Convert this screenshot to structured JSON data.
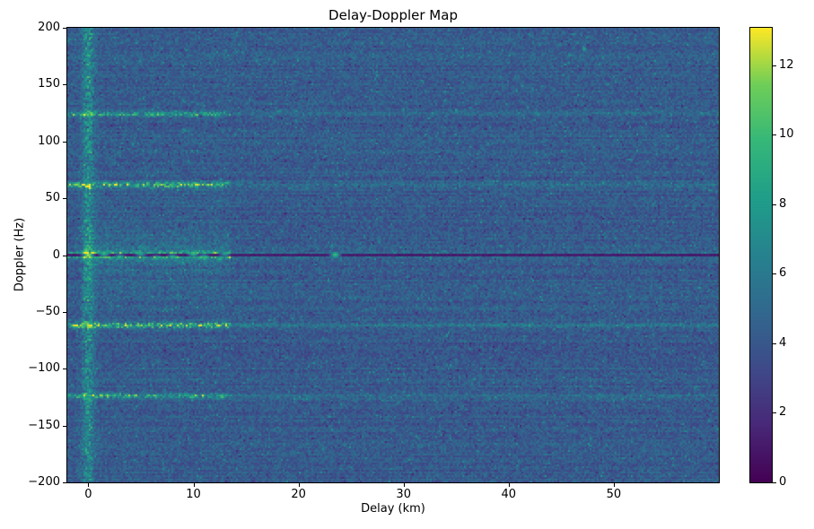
{
  "chart_data": {
    "type": "heatmap",
    "title": "Delay-Doppler Map",
    "xlabel": "Delay (km)",
    "ylabel": "Doppler (Hz)",
    "x_range_km": [
      -2,
      60
    ],
    "y_range_hz": [
      -200,
      200
    ],
    "x_ticks": [
      0,
      10,
      20,
      30,
      40,
      50
    ],
    "y_ticks": [
      -200,
      -150,
      -100,
      -50,
      0,
      50,
      100,
      150,
      200
    ],
    "colorbar": {
      "min": 0,
      "max": 13.08,
      "ticks": [
        0,
        2,
        4,
        6,
        8,
        10,
        12
      ],
      "colormap": "viridis",
      "stops": [
        [
          0.0,
          "#440154"
        ],
        [
          0.125,
          "#482878"
        ],
        [
          0.25,
          "#3e4a89"
        ],
        [
          0.375,
          "#31688e"
        ],
        [
          0.5,
          "#26828e"
        ],
        [
          0.625,
          "#1f9e89"
        ],
        [
          0.75,
          "#35b779"
        ],
        [
          0.875,
          "#6ece58"
        ],
        [
          1.0,
          "#fde725"
        ]
      ]
    },
    "background_noise": {
      "mean": 4.2,
      "spread": 2.2,
      "row_streak": 0.9,
      "seed": 42
    },
    "features": {
      "zero_doppler_dark_line": {
        "doppler_hz": 0,
        "half_width_hz": 0.9,
        "value": 0.8
      },
      "vertical_stripe": {
        "delay_km": 0,
        "sigma_km": 0.4,
        "amplitude": 3.5
      },
      "clutter_region": {
        "delay_min_km": -0.5,
        "delay_max_km": 13.5,
        "doppler_scale_hz": 16,
        "amplitude": 2.6
      },
      "horizontal_lines": [
        {
          "doppler_hz": 0,
          "sigma_hz": 2.2,
          "amp_near": 6.5,
          "amp_far": 2.2,
          "near_delay_max_km": 13.5
        },
        {
          "doppler_hz": 62,
          "sigma_hz": 1.8,
          "amp_near": 5.5,
          "amp_far": 1.6,
          "near_delay_max_km": 13.5
        },
        {
          "doppler_hz": -62,
          "sigma_hz": 1.8,
          "amp_near": 5.8,
          "amp_far": 1.7,
          "near_delay_max_km": 13.5
        },
        {
          "doppler_hz": 124,
          "sigma_hz": 1.5,
          "amp_near": 4.2,
          "amp_far": 1.1,
          "near_delay_max_km": 13.5
        },
        {
          "doppler_hz": -124,
          "sigma_hz": 1.5,
          "amp_near": 4.5,
          "amp_far": 1.1,
          "near_delay_max_km": 13.5
        }
      ],
      "hotspots": [
        {
          "delay_km": 0,
          "doppler_hz": 0,
          "value": 13.0
        },
        {
          "delay_km": -0.3,
          "doppler_hz": 3,
          "value": 11.0
        },
        {
          "delay_km": 1.5,
          "doppler_hz": 2,
          "value": 10.0
        },
        {
          "delay_km": 3,
          "doppler_hz": -2,
          "value": 9.5
        },
        {
          "delay_km": 5,
          "doppler_hz": 2,
          "value": 9.0
        },
        {
          "delay_km": 6.5,
          "doppler_hz": -3,
          "value": 9.0
        },
        {
          "delay_km": 8,
          "doppler_hz": -2,
          "value": 9.5
        },
        {
          "delay_km": 10,
          "doppler_hz": 2,
          "value": 10.5
        },
        {
          "delay_km": 11,
          "doppler_hz": -2,
          "value": 9.5
        },
        {
          "delay_km": 12.5,
          "doppler_hz": -4,
          "value": 9.0
        },
        {
          "delay_km": 13,
          "doppler_hz": 2,
          "value": 8.5
        },
        {
          "delay_km": 23.5,
          "doppler_hz": 1,
          "value": 10.0
        },
        {
          "delay_km": 23.5,
          "doppler_hz": -1,
          "value": 9.0
        },
        {
          "delay_km": 0,
          "doppler_hz": 62,
          "value": 11.0
        },
        {
          "delay_km": 0,
          "doppler_hz": -62,
          "value": 11.5
        },
        {
          "delay_km": 0,
          "doppler_hz": 124,
          "value": 9.5
        },
        {
          "delay_km": 0,
          "doppler_hz": -124,
          "value": 9.0
        },
        {
          "delay_km": 0,
          "doppler_hz": 31,
          "value": 8.0
        },
        {
          "delay_km": 0,
          "doppler_hz": -31,
          "value": 8.0
        }
      ]
    }
  }
}
